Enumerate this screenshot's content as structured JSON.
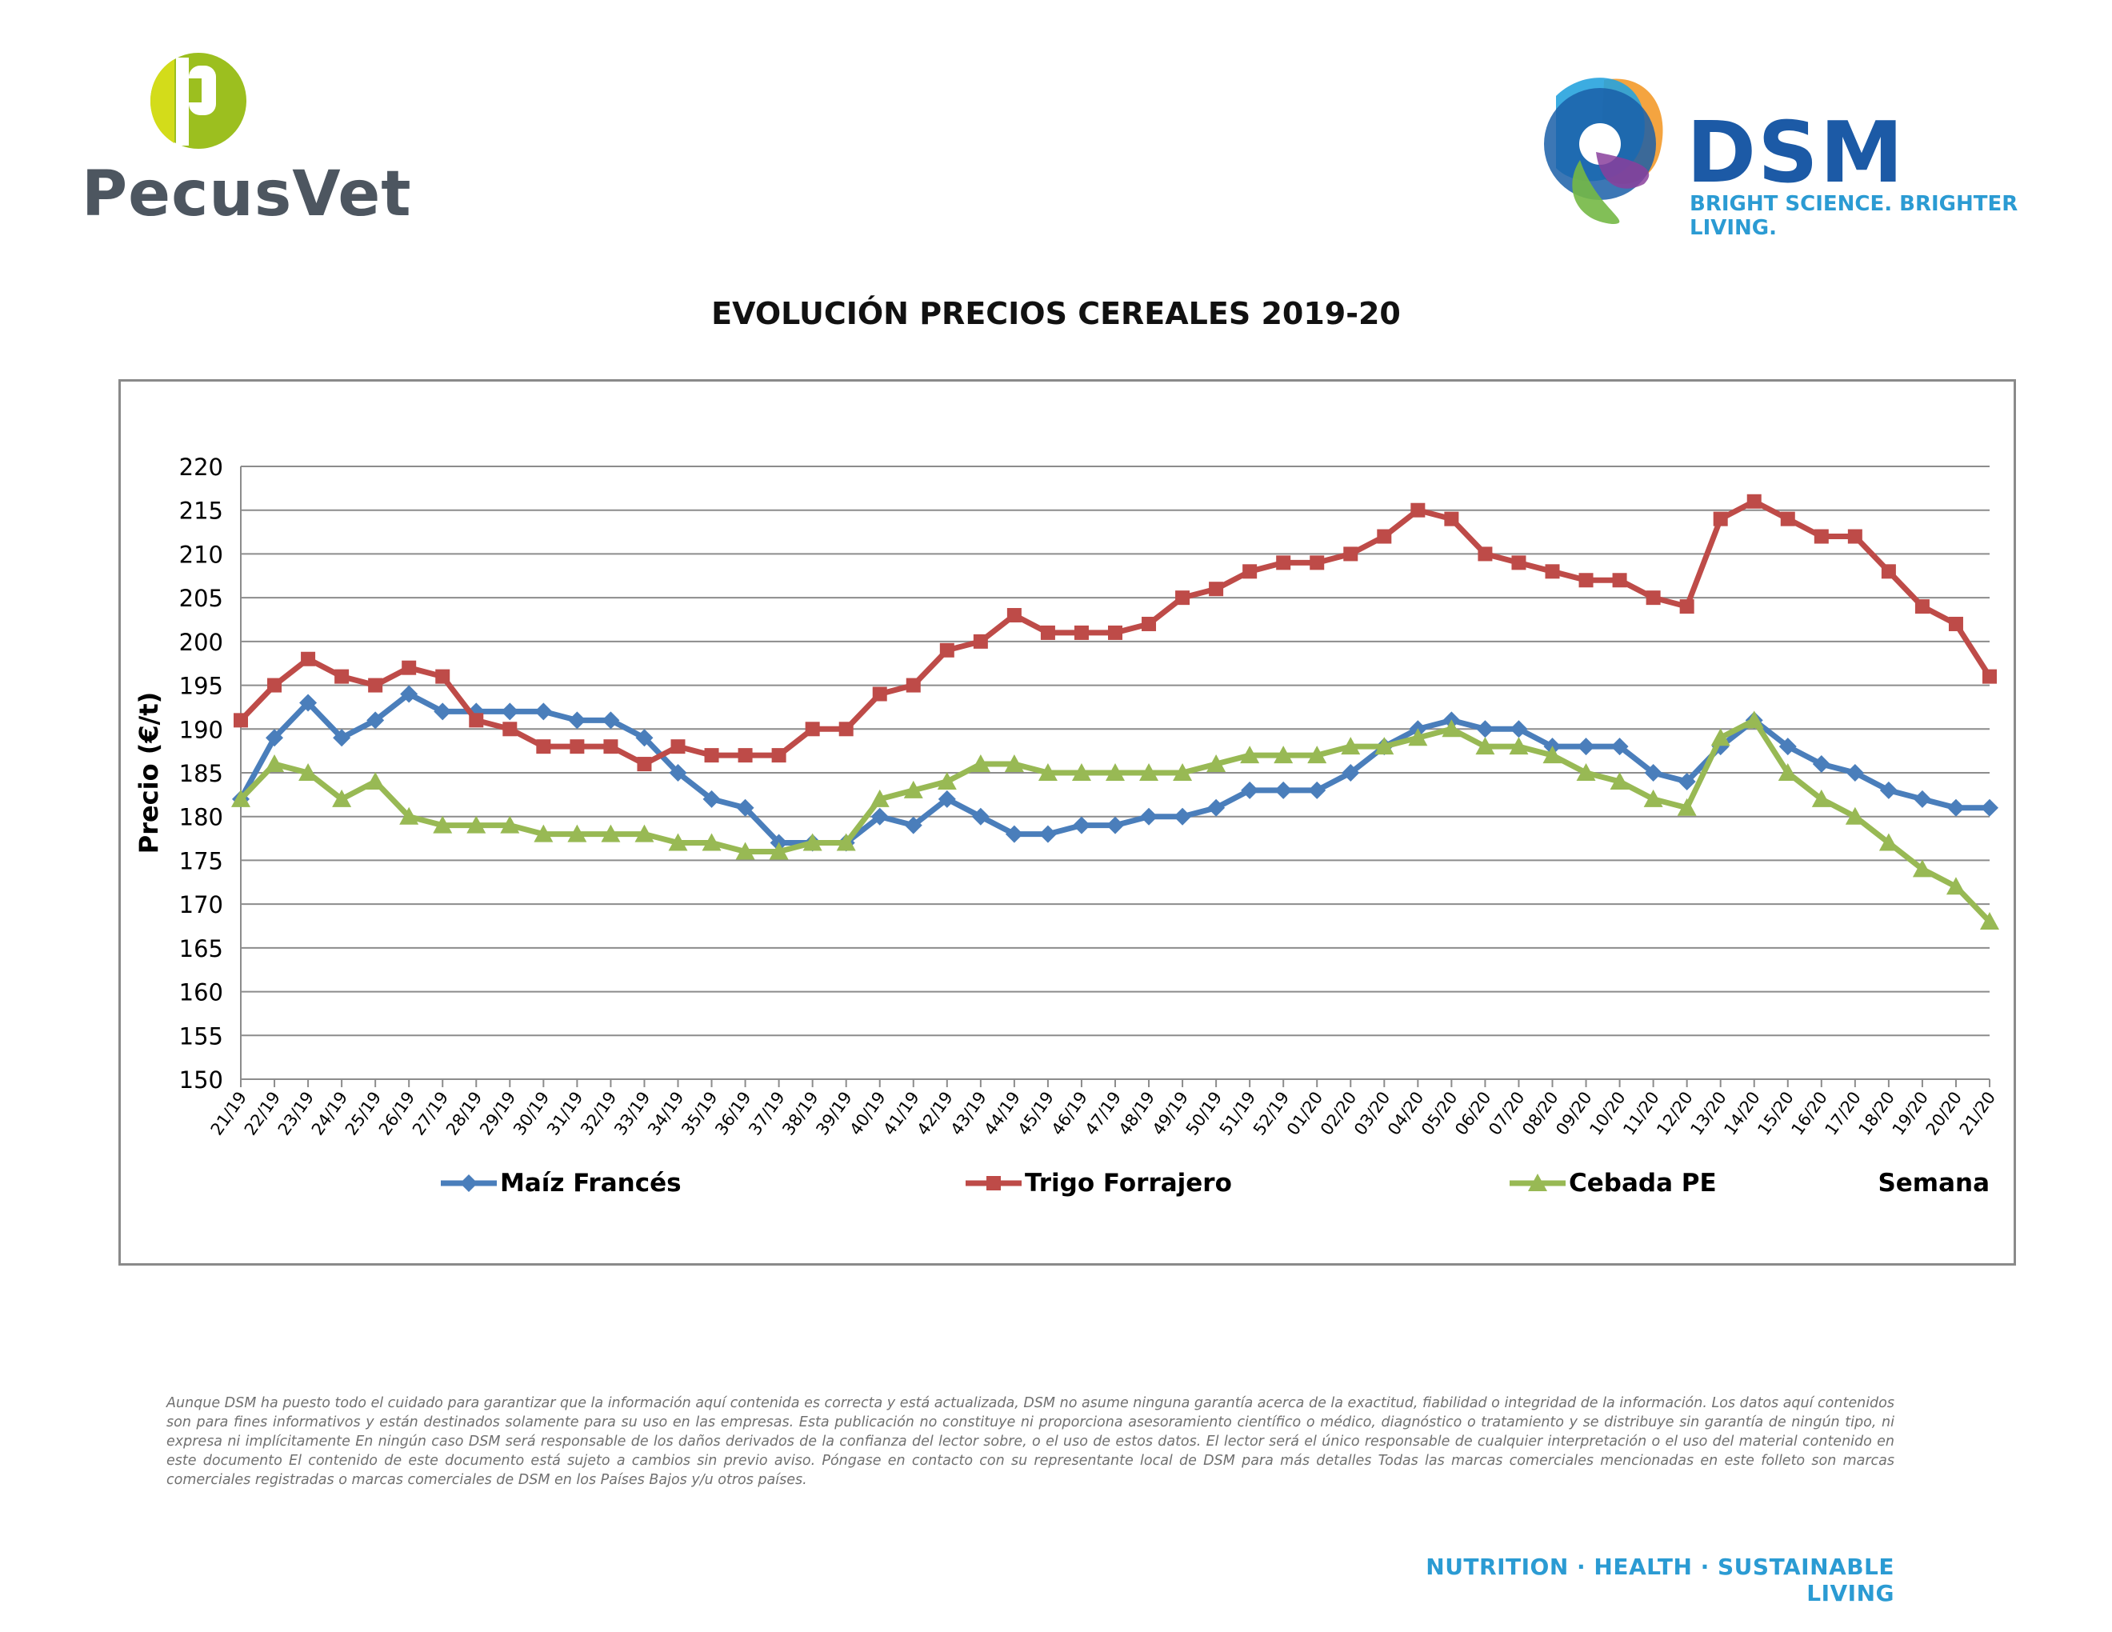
{
  "logos": {
    "pecusvet_text": "PecusVet",
    "dsm_text": "DSM",
    "dsm_tagline": "BRIGHT SCIENCE. BRIGHTER LIVING."
  },
  "chart_data": {
    "type": "line",
    "title": "EVOLUCIÓN PRECIOS CEREALES 2019-20",
    "ylabel": "Precio (€/t)",
    "xlabel": "Semana",
    "ylim": [
      150,
      220
    ],
    "ytick_step": 5,
    "grid": true,
    "legend_position": "bottom",
    "categories": [
      "21/19",
      "22/19",
      "23/19",
      "24/19",
      "25/19",
      "26/19",
      "27/19",
      "28/19",
      "29/19",
      "30/19",
      "31/19",
      "32/19",
      "33/19",
      "34/19",
      "35/19",
      "36/19",
      "37/19",
      "38/19",
      "39/19",
      "40/19",
      "41/19",
      "42/19",
      "43/19",
      "44/19",
      "45/19",
      "46/19",
      "47/19",
      "48/19",
      "49/19",
      "50/19",
      "51/19",
      "52/19",
      "01/20",
      "02/20",
      "03/20",
      "04/20",
      "05/20",
      "06/20",
      "07/20",
      "08/20",
      "09/20",
      "10/20",
      "11/20",
      "12/20",
      "13/20",
      "14/20",
      "15/20",
      "16/20",
      "17/20",
      "18/20",
      "19/20",
      "20/20",
      "21/20"
    ],
    "series": [
      {
        "name": "Maíz Francés",
        "color": "#4a7ebb",
        "marker": "diamond",
        "values": [
          182,
          189,
          193,
          189,
          191,
          194,
          192,
          192,
          192,
          192,
          191,
          191,
          189,
          185,
          182,
          181,
          177,
          177,
          177,
          180,
          179,
          182,
          180,
          178,
          178,
          179,
          179,
          180,
          180,
          181,
          183,
          183,
          183,
          185,
          188,
          190,
          191,
          190,
          190,
          188,
          188,
          188,
          185,
          184,
          188,
          191,
          188,
          186,
          185,
          183,
          182,
          181,
          181
        ]
      },
      {
        "name": "Trigo Forrajero",
        "color": "#be4b48",
        "marker": "square",
        "values": [
          191,
          195,
          198,
          196,
          195,
          197,
          196,
          191,
          190,
          188,
          188,
          188,
          186,
          188,
          187,
          187,
          187,
          190,
          190,
          194,
          195,
          199,
          200,
          203,
          201,
          201,
          201,
          202,
          205,
          206,
          208,
          209,
          209,
          210,
          212,
          215,
          214,
          210,
          209,
          208,
          207,
          207,
          205,
          204,
          214,
          216,
          214,
          212,
          212,
          208,
          204,
          202,
          196
        ]
      },
      {
        "name": "Cebada PE",
        "color": "#98b954",
        "marker": "triangle",
        "values": [
          182,
          186,
          185,
          182,
          184,
          180,
          179,
          179,
          179,
          178,
          178,
          178,
          178,
          177,
          177,
          176,
          176,
          177,
          177,
          182,
          183,
          184,
          186,
          186,
          185,
          185,
          185,
          185,
          185,
          186,
          187,
          187,
          187,
          188,
          188,
          189,
          190,
          188,
          188,
          187,
          185,
          184,
          182,
          181,
          189,
          191,
          185,
          182,
          180,
          177,
          174,
          172,
          168
        ]
      }
    ]
  },
  "disclaimer": "Aunque DSM ha puesto todo el cuidado para garantizar que la información aquí contenida es correcta y está actualizada, DSM no asume ninguna garantía acerca de la exactitud, fiabilidad o integridad de la información. Los datos aquí contenidos son para fines informativos y están destinados solamente para su uso en las empresas. Esta publicación no constituye ni proporciona asesoramiento científico o médico, diagnóstico o tratamiento y se distribuye sin garantía de ningún tipo, ni expresa ni implícitamente En ningún caso DSM será responsable de los daños derivados de la confianza del lector sobre, o el uso de estos datos. El lector será el único responsable de cualquier interpretación o el uso del material contenido en este documento El contenido de este documento está sujeto a cambios sin previo aviso. Póngase en contacto con su representante local de DSM para más detalles Todas las marcas comerciales mencionadas en este folleto son marcas comerciales registradas o marcas comerciales de DSM en los Países Bajos y/u otros países.",
  "footer_tagline": "NUTRITION · HEALTH · SUSTAINABLE LIVING"
}
